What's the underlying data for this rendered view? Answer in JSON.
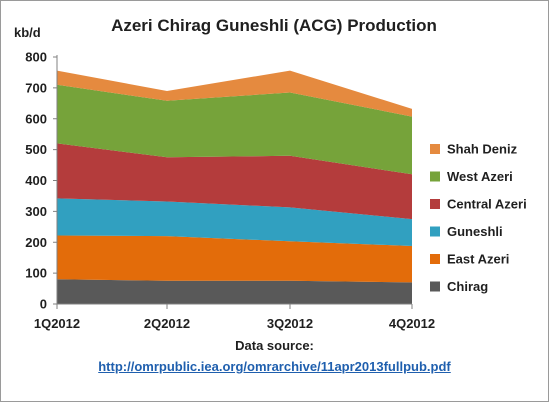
{
  "chart_data": {
    "type": "area",
    "stacked": true,
    "title": "Azeri Chirag Guneshli (ACG) Production",
    "ylabel": "kb/d",
    "xlabel": "",
    "categories": [
      "1Q2012",
      "2Q2012",
      "3Q2012",
      "4Q2012"
    ],
    "ylim": [
      0,
      800
    ],
    "yticks": [
      0,
      100,
      200,
      300,
      400,
      500,
      600,
      700,
      800
    ],
    "grid": false,
    "legend_position": "right",
    "series": [
      {
        "name": "Chirag",
        "color": "#595959",
        "values": [
          80,
          75,
          75,
          70
        ]
      },
      {
        "name": "East Azeri",
        "color": "#e36c0a",
        "values": [
          142,
          145,
          128,
          118
        ]
      },
      {
        "name": "Guneshli",
        "color": "#31a0c0",
        "values": [
          120,
          112,
          110,
          87
        ]
      },
      {
        "name": "Central Azeri",
        "color": "#b43c3c",
        "values": [
          178,
          143,
          167,
          145
        ]
      },
      {
        "name": "West Azeri",
        "color": "#76a33a",
        "values": [
          190,
          183,
          205,
          187
        ]
      },
      {
        "name": "Shah Deniz",
        "color": "#e58a3f",
        "values": [
          46,
          32,
          71,
          25
        ]
      }
    ]
  },
  "source": {
    "label": "Data source:",
    "link": "http://omrpublic.iea.org/omrarchive/11apr2013fullpub.pdf"
  }
}
